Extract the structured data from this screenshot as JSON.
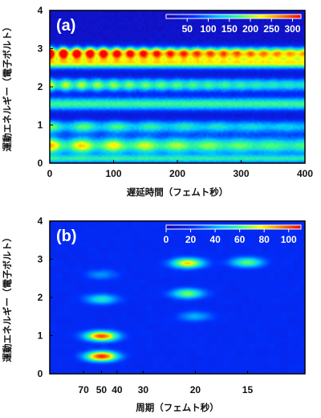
{
  "chart_data": [
    {
      "type": "heatmap",
      "panel_label": "(a)",
      "xlabel": "遅延時間（フェムト秒）",
      "ylabel": "運動エネルギー（電子ボルト）",
      "xlim": [
        0,
        400
      ],
      "ylim": [
        0,
        4
      ],
      "x_ticks": [
        "0",
        "100",
        "200",
        "300",
        "400"
      ],
      "y_ticks": [
        "0",
        "1",
        "2",
        "3",
        "4"
      ],
      "colorbar": {
        "range": [
          0,
          320
        ],
        "ticks": [
          "50",
          "100",
          "150",
          "200",
          "250",
          "300"
        ],
        "placement": "top-right"
      },
      "bands": [
        {
          "energy": 2.88,
          "width": 0.11,
          "intensity": 290,
          "oscillation_period": 21,
          "oscillation_amplitude": 0.35
        },
        {
          "energy": 2.62,
          "width": 0.1,
          "intensity": 190,
          "oscillation_period": 0,
          "oscillation_amplitude": 0
        },
        {
          "energy": 2.05,
          "width": 0.12,
          "intensity": 165,
          "oscillation_period": 25,
          "oscillation_amplitude": 0.2
        },
        {
          "energy": 1.55,
          "width": 0.12,
          "intensity": 145,
          "oscillation_period": 0,
          "oscillation_amplitude": 0
        },
        {
          "energy": 0.95,
          "width": 0.12,
          "intensity": 135,
          "oscillation_period": 53,
          "oscillation_amplitude": 0.25
        },
        {
          "energy": 0.45,
          "width": 0.16,
          "intensity": 185,
          "oscillation_period": 50,
          "oscillation_amplitude": 0.25
        },
        {
          "energy": 0.1,
          "width": 0.08,
          "intensity": 120,
          "oscillation_period": 0,
          "oscillation_amplitude": 0
        }
      ]
    },
    {
      "type": "heatmap",
      "panel_label": "(b)",
      "xlabel": "周期（フェムト秒）",
      "ylabel": "運動エネルギー（電子ボルト）",
      "xlim": [
        1,
        0.04
      ],
      "ylim": [
        0,
        4
      ],
      "x_ticks": [
        {
          "label": "70",
          "period": 70
        },
        {
          "label": "50",
          "period": 50
        },
        {
          "label": "40",
          "period": 40
        },
        {
          "label": "30",
          "period": 30
        },
        {
          "label": "20",
          "period": 20
        },
        {
          "label": "15",
          "period": 15
        }
      ],
      "y_ticks": [
        "0",
        "1",
        "2",
        "3",
        "4"
      ],
      "colorbar": {
        "range": [
          0,
          110
        ],
        "ticks": [
          "0",
          "20",
          "40",
          "60",
          "80",
          "100"
        ],
        "placement": "top-right"
      },
      "peaks": [
        {
          "period": 50,
          "energy": 0.45,
          "intensity": 105
        },
        {
          "period": 50,
          "energy": 0.98,
          "intensity": 100
        },
        {
          "period": 50,
          "energy": 1.95,
          "intensity": 52
        },
        {
          "period": 50,
          "energy": 2.6,
          "intensity": 35
        },
        {
          "period": 21,
          "energy": 2.9,
          "intensity": 82
        },
        {
          "period": 21,
          "energy": 2.1,
          "intensity": 65
        },
        {
          "period": 20,
          "energy": 1.5,
          "intensity": 40
        },
        {
          "period": 15,
          "energy": 2.92,
          "intensity": 62
        }
      ]
    }
  ]
}
